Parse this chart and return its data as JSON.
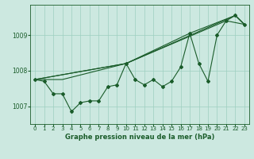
{
  "title": "",
  "xlabel": "Graphe pression niveau de la mer (hPa)",
  "ylabel": "",
  "bg_color": "#cce8e0",
  "grid_color": "#9ecfbf",
  "line_color": "#1a5c2a",
  "xlim": [
    -0.5,
    23.5
  ],
  "ylim": [
    1006.5,
    1009.85
  ],
  "yticks": [
    1007,
    1008,
    1009
  ],
  "xticks": [
    0,
    1,
    2,
    3,
    4,
    5,
    6,
    7,
    8,
    9,
    10,
    11,
    12,
    13,
    14,
    15,
    16,
    17,
    18,
    19,
    20,
    21,
    22,
    23
  ],
  "main_x": [
    0,
    1,
    2,
    3,
    4,
    5,
    6,
    7,
    8,
    9,
    10,
    11,
    12,
    13,
    14,
    15,
    16,
    17,
    18,
    19,
    20,
    21,
    22,
    23
  ],
  "main_y": [
    1007.75,
    1007.7,
    1007.35,
    1007.35,
    1006.85,
    1007.1,
    1007.15,
    1007.15,
    1007.55,
    1007.6,
    1008.2,
    1007.75,
    1007.6,
    1007.75,
    1007.55,
    1007.7,
    1008.1,
    1009.05,
    1008.2,
    1007.7,
    1009.0,
    1009.4,
    1009.55,
    1009.3
  ],
  "line2_x": [
    0,
    10,
    22,
    23
  ],
  "line2_y": [
    1007.75,
    1008.2,
    1009.55,
    1009.3
  ],
  "line3_x": [
    0,
    10,
    21,
    23
  ],
  "line3_y": [
    1007.75,
    1008.2,
    1009.4,
    1009.3
  ],
  "line4_x": [
    0,
    3,
    10,
    17,
    22,
    23
  ],
  "line4_y": [
    1007.75,
    1007.75,
    1008.2,
    1009.05,
    1009.55,
    1009.3
  ]
}
